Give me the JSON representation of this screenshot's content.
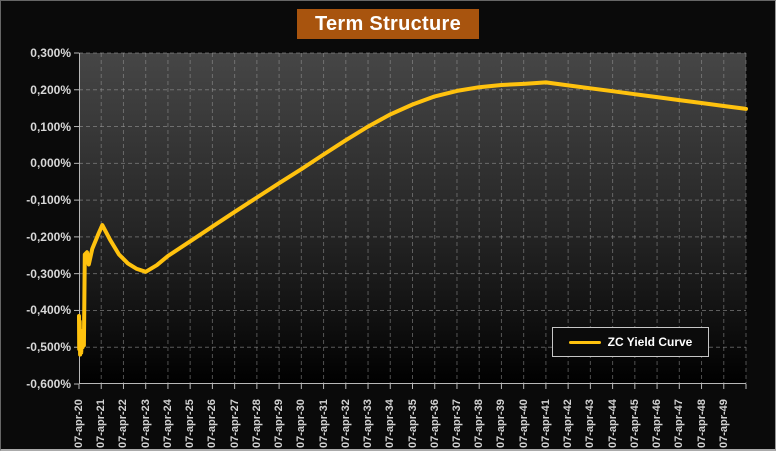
{
  "title": "Term Structure",
  "legend": {
    "label": "ZC Yield Curve"
  },
  "colors": {
    "frame_background": "#0a0a0a",
    "title_bg": "#a8540e",
    "title_text": "#ffffff",
    "plot_gradient_top": "#464646",
    "plot_gradient_bottom": "#000000",
    "grid": "#9c9c9c",
    "axis": "#b8b8b8",
    "curve": "#ffc20e",
    "label_text": "#d2d2d2",
    "legend_border": "#c6c6c6"
  },
  "chart_data": {
    "type": "line",
    "title": "Term Structure",
    "series_name": "ZC Yield Curve",
    "grid": "dashed",
    "legend_position": "inside-bottom-right",
    "x_range": [
      2020,
      2050
    ],
    "y_axis": {
      "min": -0.6,
      "max": 0.3,
      "step": 0.1,
      "unit": "%",
      "tick_labels": [
        "0,300%",
        "0,200%",
        "0,100%",
        "0,000%",
        "-0,100%",
        "-0,200%",
        "-0,300%",
        "-0,400%",
        "-0,500%",
        "-0,600%"
      ]
    },
    "x_tick_labels": [
      "07-apr-20",
      "07-apr-21",
      "07-apr-22",
      "07-apr-23",
      "07-apr-24",
      "07-apr-25",
      "07-apr-26",
      "07-apr-27",
      "07-apr-28",
      "07-apr-29",
      "07-apr-30",
      "07-apr-31",
      "07-apr-32",
      "07-apr-33",
      "07-apr-34",
      "07-apr-35",
      "07-apr-36",
      "07-apr-37",
      "07-apr-38",
      "07-apr-39",
      "07-apr-40",
      "07-apr-41",
      "07-apr-42",
      "07-apr-43",
      "07-apr-44",
      "07-apr-45",
      "07-apr-46",
      "07-apr-47",
      "07-apr-48",
      "07-apr-49"
    ],
    "points": [
      {
        "x": 2020.0,
        "y": -0.415
      },
      {
        "x": 2020.01,
        "y": -0.505
      },
      {
        "x": 2020.03,
        "y": -0.43
      },
      {
        "x": 2020.05,
        "y": -0.52
      },
      {
        "x": 2020.08,
        "y": -0.455
      },
      {
        "x": 2020.1,
        "y": -0.515
      },
      {
        "x": 2020.13,
        "y": -0.47
      },
      {
        "x": 2020.16,
        "y": -0.5
      },
      {
        "x": 2020.19,
        "y": -0.48
      },
      {
        "x": 2020.22,
        "y": -0.495
      },
      {
        "x": 2020.26,
        "y": -0.248
      },
      {
        "x": 2020.36,
        "y": -0.242
      },
      {
        "x": 2020.44,
        "y": -0.275
      },
      {
        "x": 2020.6,
        "y": -0.232
      },
      {
        "x": 2020.85,
        "y": -0.195
      },
      {
        "x": 2021.05,
        "y": -0.168
      },
      {
        "x": 2021.4,
        "y": -0.208
      },
      {
        "x": 2021.8,
        "y": -0.248
      },
      {
        "x": 2022.2,
        "y": -0.272
      },
      {
        "x": 2022.6,
        "y": -0.287
      },
      {
        "x": 2023.0,
        "y": -0.295
      },
      {
        "x": 2023.5,
        "y": -0.277
      },
      {
        "x": 2024.0,
        "y": -0.252
      },
      {
        "x": 2025.0,
        "y": -0.212
      },
      {
        "x": 2026.0,
        "y": -0.172
      },
      {
        "x": 2027.0,
        "y": -0.132
      },
      {
        "x": 2028.0,
        "y": -0.093
      },
      {
        "x": 2029.0,
        "y": -0.054
      },
      {
        "x": 2030.0,
        "y": -0.016
      },
      {
        "x": 2031.0,
        "y": 0.024
      },
      {
        "x": 2032.0,
        "y": 0.063
      },
      {
        "x": 2033.0,
        "y": 0.1
      },
      {
        "x": 2034.0,
        "y": 0.133
      },
      {
        "x": 2035.0,
        "y": 0.16
      },
      {
        "x": 2036.0,
        "y": 0.182
      },
      {
        "x": 2037.0,
        "y": 0.197
      },
      {
        "x": 2038.0,
        "y": 0.207
      },
      {
        "x": 2039.0,
        "y": 0.213
      },
      {
        "x": 2040.0,
        "y": 0.216
      },
      {
        "x": 2041.0,
        "y": 0.22
      },
      {
        "x": 2042.0,
        "y": 0.212
      },
      {
        "x": 2043.0,
        "y": 0.204
      },
      {
        "x": 2044.0,
        "y": 0.196
      },
      {
        "x": 2045.0,
        "y": 0.188
      },
      {
        "x": 2046.0,
        "y": 0.18
      },
      {
        "x": 2047.0,
        "y": 0.172
      },
      {
        "x": 2048.0,
        "y": 0.164
      },
      {
        "x": 2049.0,
        "y": 0.156
      },
      {
        "x": 2050.0,
        "y": 0.148
      }
    ]
  }
}
